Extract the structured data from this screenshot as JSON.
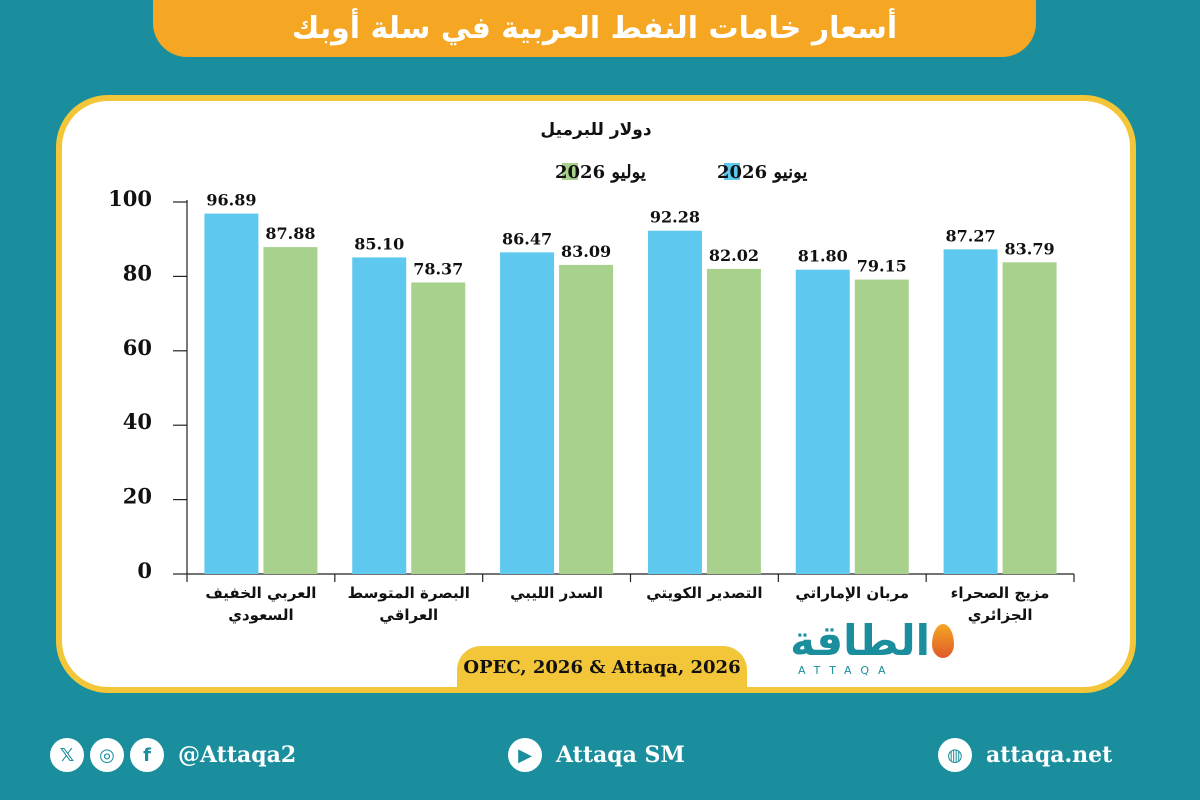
{
  "header": {
    "title": "أسعار خامات النفط العربية في سلة أوبك"
  },
  "chart_data": {
    "type": "bar",
    "ylabel": "دولار للبرميل",
    "ylim": [
      0,
      100
    ],
    "yticks": [
      0,
      20,
      40,
      60,
      80,
      100
    ],
    "legend_position": "top-center",
    "categories": [
      [
        "العربي الخفيف",
        "السعودي"
      ],
      [
        "البصرة المتوسط",
        "العراقي"
      ],
      [
        "السدر الليبي"
      ],
      [
        "التصدير الكويتي"
      ],
      [
        "مربان الإماراتي"
      ],
      [
        "مزيج الصحراء",
        "الجزائري"
      ]
    ],
    "series": [
      {
        "name": "يونيو 2026",
        "color": "#5ec8ef",
        "values": [
          96.89,
          85.1,
          86.47,
          92.28,
          81.8,
          87.27
        ]
      },
      {
        "name": "يوليو 2026",
        "color": "#a9d18e",
        "values": [
          87.88,
          78.37,
          83.09,
          82.02,
          79.15,
          83.79
        ]
      }
    ]
  },
  "source": "OPEC, 2026 & Attaqa, 2026",
  "logo": {
    "name": "الطاقة",
    "sub": "ATTAQA"
  },
  "footer": {
    "social_handle": "@Attaqa2",
    "youtube": "Attaqa SM",
    "website": "attaqa.net",
    "icons": [
      "x-icon",
      "instagram-icon",
      "facebook-icon",
      "youtube-icon",
      "globe-icon"
    ]
  }
}
